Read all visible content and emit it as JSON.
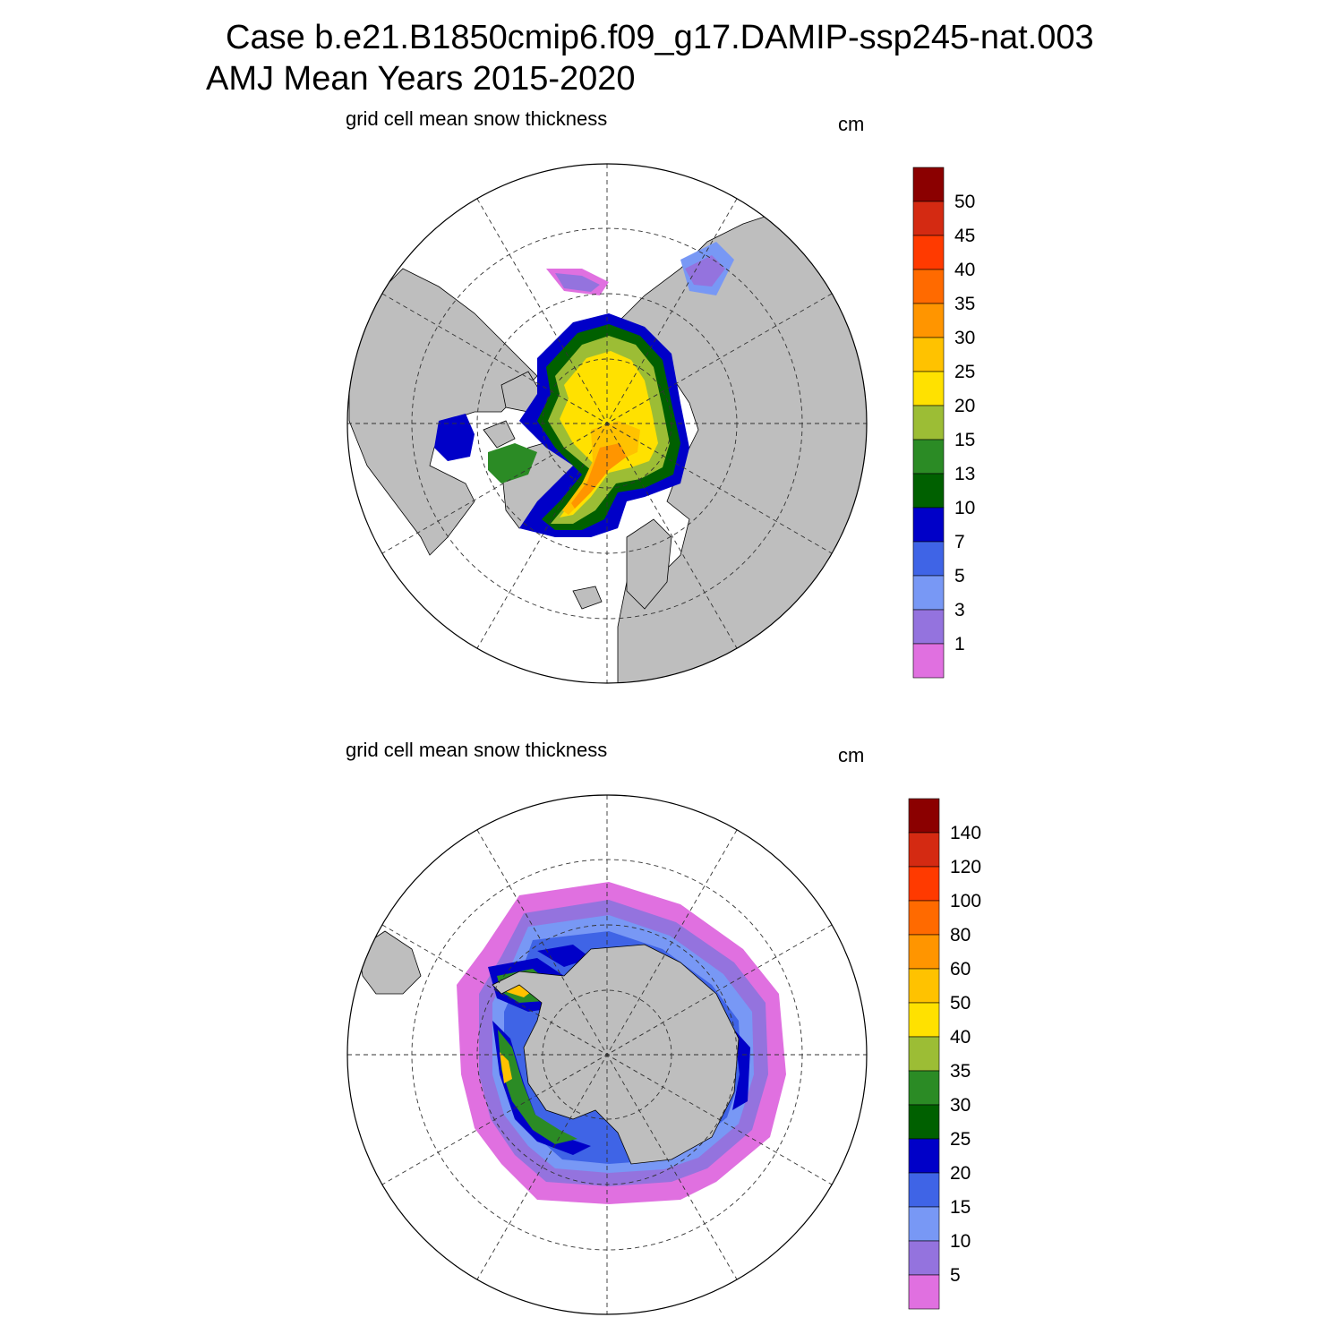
{
  "title_line1": "Case b.e21.B1850cmip6.f09_g17.DAMIP-ssp245-nat.003",
  "title_line2": "AMJ Mean   Years 2015-2020",
  "panels": [
    {
      "id": "north",
      "title": "grid cell mean snow thickness",
      "units": "cm",
      "colorbar_labels": [
        "50",
        "45",
        "40",
        "35",
        "30",
        "25",
        "20",
        "15",
        "13",
        "10",
        "7",
        "5",
        "3",
        "1"
      ]
    },
    {
      "id": "south",
      "title": "grid cell mean snow thickness",
      "units": "cm",
      "colorbar_labels": [
        "140",
        "120",
        "100",
        "80",
        "60",
        "50",
        "40",
        "35",
        "30",
        "25",
        "20",
        "15",
        "10",
        "5"
      ]
    }
  ],
  "colors": {
    "scale": [
      "#8b0000",
      "#d42a12",
      "#ff3a00",
      "#ff6a00",
      "#ff9500",
      "#ffc200",
      "#ffe100",
      "#9cbd35",
      "#2b8b25",
      "#006000",
      "#0000c8",
      "#3f64e6",
      "#7898f5",
      "#9473de",
      "#e070e0"
    ],
    "land": "#bebebe",
    "ocean": "#ffffff"
  }
}
